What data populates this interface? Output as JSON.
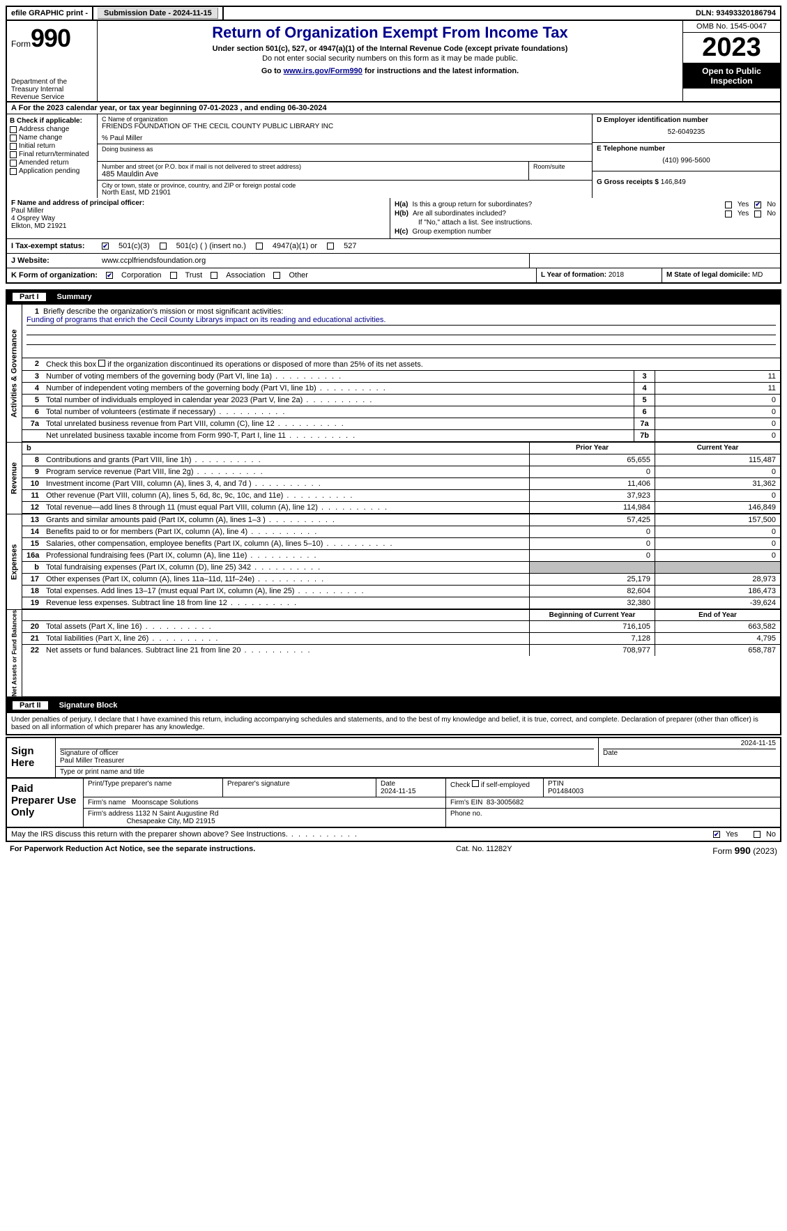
{
  "topbar": {
    "efile": "efile GRAPHIC print -",
    "submission_label": "Submission Date - 2024-11-15",
    "dln_label": "DLN: 93493320186794"
  },
  "header": {
    "form_word": "Form",
    "form_num": "990",
    "dept": "Department of the Treasury Internal Revenue Service",
    "title": "Return of Organization Exempt From Income Tax",
    "subtitle": "Under section 501(c), 527, or 4947(a)(1) of the Internal Revenue Code (except private foundations)",
    "ssn_note": "Do not enter social security numbers on this form as it may be made public.",
    "goto_pre": "Go to ",
    "goto_link": "www.irs.gov/Form990",
    "goto_post": " for instructions and the latest information.",
    "omb": "OMB No. 1545-0047",
    "year": "2023",
    "open": "Open to Public Inspection"
  },
  "rowA": "For the 2023 calendar year, or tax year beginning 07-01-2023   , and ending 06-30-2024",
  "colB": {
    "hdr": "B Check if applicable:",
    "items": [
      "Address change",
      "Name change",
      "Initial return",
      "Final return/terminated",
      "Amended return",
      "Application pending"
    ]
  },
  "colC": {
    "name_lbl": "C Name of organization",
    "name": "FRIENDS FOUNDATION OF THE CECIL COUNTY PUBLIC LIBRARY INC",
    "care_of": "% Paul Miller",
    "dba_lbl": "Doing business as",
    "addr_lbl": "Number and street (or P.O. box if mail is not delivered to street address)",
    "addr": "485 Mauldin Ave",
    "room_lbl": "Room/suite",
    "city_lbl": "City or town, state or province, country, and ZIP or foreign postal code",
    "city": "North East, MD  21901"
  },
  "colDG": {
    "d_lbl": "D Employer identification number",
    "d_val": "52-6049235",
    "e_lbl": "E Telephone number",
    "e_val": "(410) 996-5600",
    "g_lbl": "G Gross receipts $",
    "g_val": "146,849"
  },
  "colF": {
    "lbl": "F  Name and address of principal officer:",
    "name": "Paul Miller",
    "addr1": "4 Osprey Way",
    "addr2": "Elkton, MD  21921"
  },
  "colH": {
    "a_lbl": "H(a)",
    "a_txt": "Is this a group return for subordinates?",
    "b_lbl": "H(b)",
    "b_txt": "Are all subordinates included?",
    "b_note": "If \"No,\" attach a list. See instructions.",
    "c_lbl": "H(c)",
    "c_txt": "Group exemption number",
    "yes": "Yes",
    "no": "No"
  },
  "rowI": {
    "lbl": "I   Tax-exempt status:",
    "o1": "501(c)(3)",
    "o2": "501(c) (  ) (insert no.)",
    "o3": "4947(a)(1) or",
    "o4": "527"
  },
  "rowJ": {
    "lbl": "J   Website:",
    "val": "www.ccplfriendsfoundation.org"
  },
  "rowK": {
    "lbl": "K Form of organization:",
    "o1": "Corporation",
    "o2": "Trust",
    "o3": "Association",
    "o4": "Other"
  },
  "rowL": {
    "lbl": "L Year of formation:",
    "val": "2018"
  },
  "rowM": {
    "lbl": "M State of legal domicile:",
    "val": "MD"
  },
  "part1": {
    "num": "Part I",
    "title": "Summary"
  },
  "vtabs": {
    "ag": "Activities & Governance",
    "rev": "Revenue",
    "exp": "Expenses",
    "na": "Net Assets or Fund Balances"
  },
  "mission": {
    "lbl": "Briefly describe the organization's mission or most significant activities:",
    "txt": "Funding of programs that enrich the Cecil County Librarys impact on its reading and educational activities."
  },
  "line2": "Check this box      if the organization discontinued its operations or disposed of more than 25% of its net assets.",
  "gov_lines": [
    {
      "n": "3",
      "t": "Number of voting members of the governing body (Part VI, line 1a)",
      "b": "3",
      "v": "11"
    },
    {
      "n": "4",
      "t": "Number of independent voting members of the governing body (Part VI, line 1b)",
      "b": "4",
      "v": "11"
    },
    {
      "n": "5",
      "t": "Total number of individuals employed in calendar year 2023 (Part V, line 2a)",
      "b": "5",
      "v": "0"
    },
    {
      "n": "6",
      "t": "Total number of volunteers (estimate if necessary)",
      "b": "6",
      "v": "0"
    },
    {
      "n": "7a",
      "t": "Total unrelated business revenue from Part VIII, column (C), line 12",
      "b": "7a",
      "v": "0"
    },
    {
      "n": "",
      "t": "Net unrelated business taxable income from Form 990-T, Part I, line 11",
      "b": "7b",
      "v": "0"
    }
  ],
  "col_hdrs": {
    "prior": "Prior Year",
    "current": "Current Year",
    "boy": "Beginning of Current Year",
    "eoy": "End of Year"
  },
  "rev_lines": [
    {
      "n": "8",
      "t": "Contributions and grants (Part VIII, line 1h)",
      "p": "65,655",
      "c": "115,487"
    },
    {
      "n": "9",
      "t": "Program service revenue (Part VIII, line 2g)",
      "p": "0",
      "c": "0"
    },
    {
      "n": "10",
      "t": "Investment income (Part VIII, column (A), lines 3, 4, and 7d )",
      "p": "11,406",
      "c": "31,362"
    },
    {
      "n": "11",
      "t": "Other revenue (Part VIII, column (A), lines 5, 6d, 8c, 9c, 10c, and 11e)",
      "p": "37,923",
      "c": "0"
    },
    {
      "n": "12",
      "t": "Total revenue—add lines 8 through 11 (must equal Part VIII, column (A), line 12)",
      "p": "114,984",
      "c": "146,849"
    }
  ],
  "exp_lines": [
    {
      "n": "13",
      "t": "Grants and similar amounts paid (Part IX, column (A), lines 1–3 )",
      "p": "57,425",
      "c": "157,500"
    },
    {
      "n": "14",
      "t": "Benefits paid to or for members (Part IX, column (A), line 4)",
      "p": "0",
      "c": "0"
    },
    {
      "n": "15",
      "t": "Salaries, other compensation, employee benefits (Part IX, column (A), lines 5–10)",
      "p": "0",
      "c": "0"
    },
    {
      "n": "16a",
      "t": "Professional fundraising fees (Part IX, column (A), line 11e)",
      "p": "0",
      "c": "0"
    },
    {
      "n": "b",
      "t": "Total fundraising expenses (Part IX, column (D), line 25) 342",
      "p": "",
      "c": "",
      "gray": true
    },
    {
      "n": "17",
      "t": "Other expenses (Part IX, column (A), lines 11a–11d, 11f–24e)",
      "p": "25,179",
      "c": "28,973"
    },
    {
      "n": "18",
      "t": "Total expenses. Add lines 13–17 (must equal Part IX, column (A), line 25)",
      "p": "82,604",
      "c": "186,473"
    },
    {
      "n": "19",
      "t": "Revenue less expenses. Subtract line 18 from line 12",
      "p": "32,380",
      "c": "-39,624"
    }
  ],
  "na_lines": [
    {
      "n": "20",
      "t": "Total assets (Part X, line 16)",
      "p": "716,105",
      "c": "663,582"
    },
    {
      "n": "21",
      "t": "Total liabilities (Part X, line 26)",
      "p": "7,128",
      "c": "4,795"
    },
    {
      "n": "22",
      "t": "Net assets or fund balances. Subtract line 21 from line 20",
      "p": "708,977",
      "c": "658,787"
    }
  ],
  "part2": {
    "num": "Part II",
    "title": "Signature Block"
  },
  "perjury": "Under penalties of perjury, I declare that I have examined this return, including accompanying schedules and statements, and to the best of my knowledge and belief, it is true, correct, and complete. Declaration of preparer (other than officer) is based on all information of which preparer has any knowledge.",
  "sign": {
    "here": "Sign Here",
    "sig_lbl": "Signature of officer",
    "name": "Paul Miller  Treasurer",
    "type_lbl": "Type or print name and title",
    "date_lbl": "Date",
    "date": "2024-11-15"
  },
  "prep": {
    "lbl": "Paid Preparer Use Only",
    "name_lbl": "Print/Type preparer's name",
    "sig_lbl": "Preparer's signature",
    "date_lbl": "Date",
    "date": "2024-11-15",
    "check_lbl": "Check        if self-employed",
    "ptin_lbl": "PTIN",
    "ptin": "P01484003",
    "firm_name_lbl": "Firm's name",
    "firm_name": "Moonscape Solutions",
    "ein_lbl": "Firm's EIN",
    "ein": "83-3005682",
    "firm_addr_lbl": "Firm's address",
    "firm_addr1": "1132 N Saint Augustine Rd",
    "firm_addr2": "Chesapeake City, MD  21915",
    "phone_lbl": "Phone no."
  },
  "may": {
    "q": "May the IRS discuss this return with the preparer shown above? See Instructions.",
    "yes": "Yes",
    "no": "No"
  },
  "footer": {
    "left": "For Paperwork Reduction Act Notice, see the separate instructions.",
    "mid": "Cat. No. 11282Y",
    "right_pre": "Form ",
    "right_b": "990",
    "right_post": " (2023)"
  }
}
